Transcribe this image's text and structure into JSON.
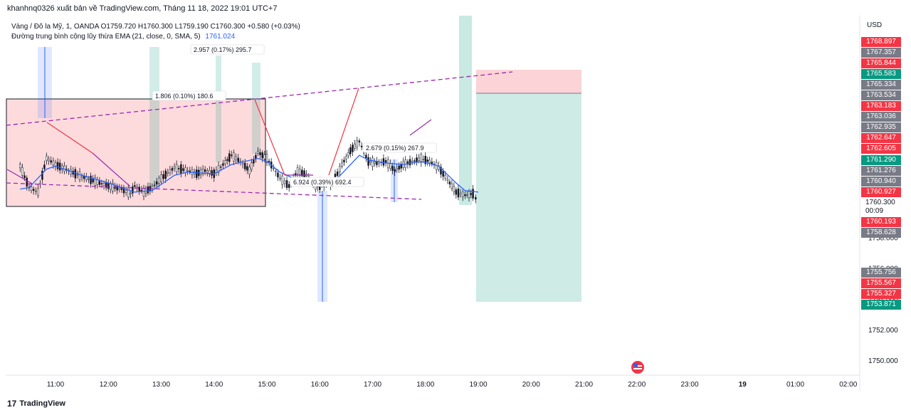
{
  "header": {
    "publish_line": "khanhnq0326 xuất bản về TradingView.com, Tháng 11 18, 2022 19:01 UTC+7"
  },
  "legend": {
    "symbol_line": "Vàng / Đô la Mỹ, 1, OANDA  O1759.720  H1760.300  L1759.190  C1760.300  +0.580 (+0.03%)",
    "ema_label": "Đường trung bình cộng lũy thừa EMA (21, close, 0, SMA, 5)",
    "ema_value": "1761.024"
  },
  "currency": "USD",
  "price_labels": [
    {
      "text": "1768.897",
      "price": 1768.897,
      "color": "#f23645"
    },
    {
      "text": "1767.357",
      "price": 1767.357,
      "color": "#787b86"
    },
    {
      "text": "1765.844",
      "price": 1765.844,
      "color": "#f23645"
    },
    {
      "text": "1765.583",
      "price": 1765.583,
      "color": "#089981"
    },
    {
      "text": "1765.334",
      "price": 1765.334,
      "color": "#787b86"
    },
    {
      "text": "1763.534",
      "price": 1763.534,
      "color": "#787b86"
    },
    {
      "text": "1763.183",
      "price": 1763.183,
      "color": "#f23645"
    },
    {
      "text": "1763.036",
      "price": 1763.036,
      "color": "#787b86"
    },
    {
      "text": "1762.935",
      "price": 1762.935,
      "color": "#787b86"
    },
    {
      "text": "1762.647",
      "price": 1762.647,
      "color": "#f23645"
    },
    {
      "text": "1762.605",
      "price": 1762.605,
      "color": "#f23645"
    },
    {
      "text": "1761.290",
      "price": 1761.29,
      "color": "#089981"
    },
    {
      "text": "1761.276",
      "price": 1761.276,
      "color": "#787b86"
    },
    {
      "text": "1760.940",
      "price": 1760.94,
      "color": "#787b86"
    },
    {
      "text": "1760.927",
      "price": 1760.927,
      "color": "#f23645"
    },
    {
      "text": "1760.193",
      "price": 1760.193,
      "color": "#f23645"
    },
    {
      "text": "1758.628",
      "price": 1758.628,
      "color": "#787b86"
    },
    {
      "text": "1755.756",
      "price": 1755.756,
      "color": "#787b86"
    },
    {
      "text": "1755.567",
      "price": 1755.567,
      "color": "#f23645"
    },
    {
      "text": "1755.327",
      "price": 1755.327,
      "color": "#f23645"
    },
    {
      "text": "1753.871",
      "price": 1753.871,
      "color": "#089981"
    }
  ],
  "last_price": {
    "text": "1760.300",
    "countdown": "00:09"
  },
  "annotations": [
    {
      "text": "1.806 (0.10%) 180.6"
    },
    {
      "text": "2.957 (0.17%) 295.7"
    },
    {
      "text": "2.679 (0.15%) 267.9"
    },
    {
      "text": "6.924 (0.39%) 692.4"
    }
  ],
  "footer": {
    "brand": "TradingView",
    "logo_glyph": "17"
  },
  "chart_data": {
    "type": "candlestick",
    "symbol": "Vàng / Đô la Mỹ",
    "interval": "1",
    "source": "OANDA",
    "ohlc_last": {
      "open": 1759.72,
      "high": 1760.3,
      "low": 1759.19,
      "close": 1760.3,
      "change": 0.58,
      "change_pct": 0.03
    },
    "y_ticks": [
      1750.0,
      1752.0,
      1754.0,
      1756.0,
      1758.0
    ],
    "x_ticks": [
      "11:00",
      "12:00",
      "13:00",
      "14:00",
      "15:00",
      "16:00",
      "17:00",
      "18:00",
      "19:00",
      "20:00",
      "21:00",
      "22:00",
      "23:00",
      "19",
      "01:00",
      "02:00"
    ],
    "price_path": [
      [
        10.33,
        1762.7
      ],
      [
        10.5,
        1761.3
      ],
      [
        10.67,
        1761.0
      ],
      [
        10.83,
        1763.2
      ],
      [
        11.0,
        1762.8
      ],
      [
        11.25,
        1762.4
      ],
      [
        11.5,
        1762.0
      ],
      [
        11.75,
        1761.7
      ],
      [
        12.0,
        1761.4
      ],
      [
        12.25,
        1761.2
      ],
      [
        12.42,
        1760.9
      ],
      [
        12.5,
        1761.4
      ],
      [
        12.67,
        1761.0
      ],
      [
        12.83,
        1761.3
      ],
      [
        13.0,
        1761.9
      ],
      [
        13.25,
        1762.6
      ],
      [
        13.5,
        1762.4
      ],
      [
        13.67,
        1762.2
      ],
      [
        13.83,
        1762.4
      ],
      [
        14.0,
        1762.2
      ],
      [
        14.17,
        1762.8
      ],
      [
        14.33,
        1763.4
      ],
      [
        14.5,
        1763.0
      ],
      [
        14.67,
        1762.4
      ],
      [
        14.83,
        1763.6
      ],
      [
        15.0,
        1763.2
      ],
      [
        15.25,
        1761.9
      ],
      [
        15.42,
        1761.4
      ],
      [
        15.58,
        1762.4
      ],
      [
        15.75,
        1762.1
      ],
      [
        15.92,
        1761.4
      ],
      [
        16.08,
        1761.5
      ],
      [
        16.25,
        1761.6
      ],
      [
        16.42,
        1762.8
      ],
      [
        16.58,
        1763.7
      ],
      [
        16.75,
        1764.3
      ],
      [
        16.92,
        1763.0
      ],
      [
        17.08,
        1762.9
      ],
      [
        17.25,
        1763.0
      ],
      [
        17.42,
        1762.4
      ],
      [
        17.58,
        1762.8
      ],
      [
        17.75,
        1763.0
      ],
      [
        17.92,
        1763.2
      ],
      [
        18.08,
        1763.0
      ],
      [
        18.25,
        1762.6
      ],
      [
        18.42,
        1761.8
      ],
      [
        18.58,
        1761.0
      ],
      [
        18.75,
        1760.8
      ],
      [
        18.9,
        1760.9
      ],
      [
        19.0,
        1760.3
      ]
    ],
    "ema_path": [
      [
        10.33,
        1761.2
      ],
      [
        10.5,
        1761.3
      ],
      [
        10.83,
        1762.5
      ],
      [
        11.0,
        1762.7
      ],
      [
        11.5,
        1762.1
      ],
      [
        12.0,
        1761.6
      ],
      [
        12.5,
        1761.0
      ],
      [
        12.83,
        1761.1
      ],
      [
        13.0,
        1761.5
      ],
      [
        13.25,
        1762.1
      ],
      [
        13.5,
        1762.3
      ],
      [
        14.0,
        1762.2
      ],
      [
        14.33,
        1762.8
      ],
      [
        14.83,
        1763.2
      ],
      [
        15.0,
        1763.0
      ],
      [
        15.25,
        1762.3
      ],
      [
        15.5,
        1761.9
      ],
      [
        15.92,
        1761.6
      ],
      [
        16.25,
        1761.6
      ],
      [
        16.5,
        1762.5
      ],
      [
        16.75,
        1763.4
      ],
      [
        16.92,
        1763.1
      ],
      [
        17.25,
        1762.9
      ],
      [
        17.58,
        1762.8
      ],
      [
        17.92,
        1763.0
      ],
      [
        18.25,
        1762.7
      ],
      [
        18.58,
        1761.6
      ],
      [
        18.75,
        1761.1
      ],
      [
        19.0,
        1761.0
      ]
    ]
  }
}
